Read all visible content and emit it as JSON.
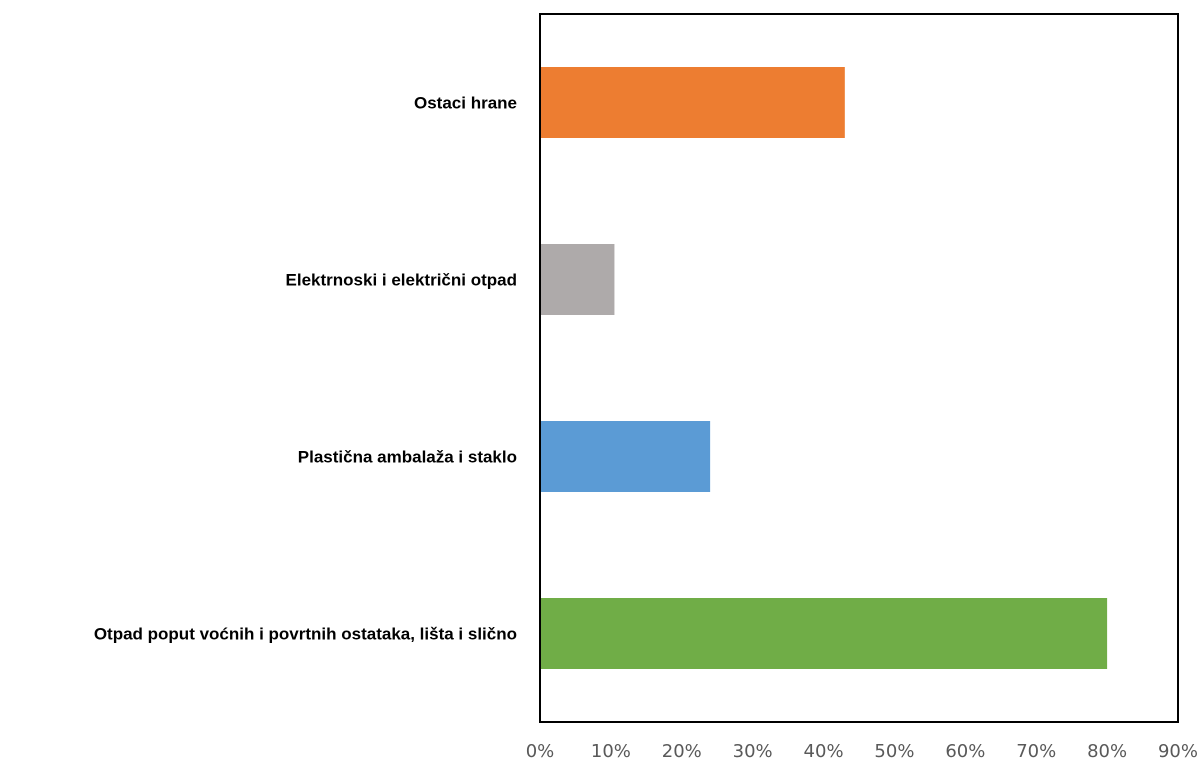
{
  "chart_data": {
    "type": "bar",
    "orientation": "horizontal",
    "categories": [
      "Ostaci hrane",
      "Elektrnoski i električni otpad",
      "Plastična ambalaža i staklo",
      "Otpad poput voćnih i povrtnih ostataka, lišta i slično"
    ],
    "values": [
      0.43,
      0.105,
      0.24,
      0.8
    ],
    "colors": [
      "#ED7D31",
      "#AEAAAA",
      "#5B9BD5",
      "#70AD47"
    ],
    "xlim": [
      0,
      0.9
    ],
    "xticks": [
      "0%",
      "10%",
      "20%",
      "30%",
      "40%",
      "50%",
      "60%",
      "70%",
      "80%",
      "90%"
    ],
    "value_format": "percent",
    "title": "",
    "xlabel": "",
    "ylabel": "",
    "grid": false,
    "legend": "none"
  }
}
